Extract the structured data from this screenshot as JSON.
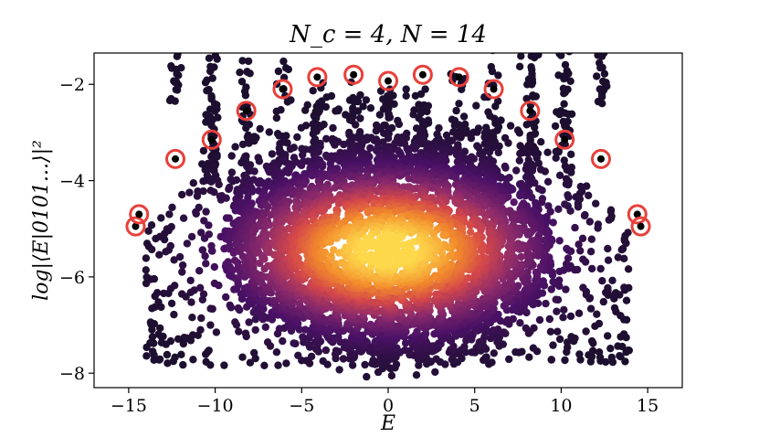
{
  "chart_data": {
    "type": "scatter",
    "title": "N_c = 4, N = 14",
    "xlabel": "E",
    "ylabel": "log|⟨E|0101...⟩|²",
    "xlim": [
      -17,
      17
    ],
    "ylim": [
      -8.3,
      -1.35
    ],
    "xticks": [
      -15,
      -10,
      -5,
      0,
      5,
      10,
      15
    ],
    "yticks": [
      -8,
      -6,
      -4,
      -2
    ],
    "grid": false,
    "colormap": "inferno-like density (dark purple = sparse, yellow = dense)",
    "colors": {
      "sparse": "#1c0f2e",
      "mid_low": "#4a1166",
      "mid": "#8c2a6b",
      "mid_high": "#d3474a",
      "dense": "#f28a2c",
      "densest": "#fdd84b",
      "highlight_ring": "#e8403a"
    },
    "highlighted_points": {
      "description": "states circled in red",
      "x": [
        -14.6,
        -14.4,
        -12.3,
        -10.2,
        -8.2,
        -6.1,
        -4.1,
        -2.0,
        0.0,
        2.0,
        4.1,
        6.1,
        8.2,
        10.2,
        12.3,
        14.4,
        14.6
      ],
      "y": [
        -4.95,
        -4.7,
        -3.55,
        -3.15,
        -2.55,
        -2.1,
        -1.85,
        -1.8,
        -1.93,
        -1.8,
        -1.85,
        -2.1,
        -2.55,
        -3.15,
        -3.55,
        -4.7,
        -4.95
      ]
    }
  }
}
